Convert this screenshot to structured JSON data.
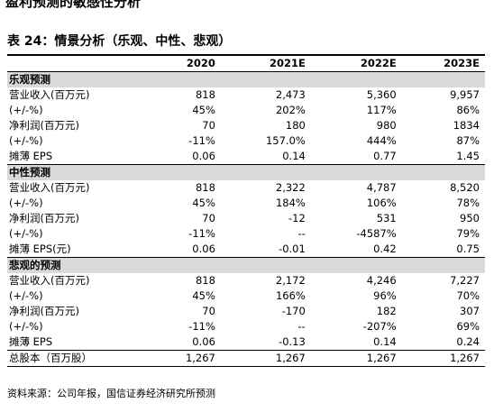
{
  "header": {
    "title": "盈利预测的敏感性分析"
  },
  "table": {
    "caption": "表 24：情景分析（乐观、中性、悲观）",
    "columns": [
      "2020",
      "2021E",
      "2022E",
      "2023E"
    ],
    "rows": [
      [
        "乐观预测"
      ],
      [
        "营业收入(百万元)",
        "818",
        "2,473",
        "5,360",
        "9,957"
      ],
      [
        "(+/-%)",
        "45%",
        "202%",
        "117%",
        "86%"
      ],
      [
        "净利润(百万元)",
        "70",
        "180",
        "980",
        "1834"
      ],
      [
        "(+/-%)",
        "-11%",
        "157.0%",
        "444%",
        "87%"
      ],
      [
        "摊薄 EPS",
        "0.06",
        "0.14",
        "0.77",
        "1.45"
      ],
      [
        "中性预测"
      ],
      [
        "营业收入(百万元)",
        "818",
        "2,322",
        "4,787",
        "8,520"
      ],
      [
        "(+/-%)",
        "45%",
        "184%",
        "106%",
        "78%"
      ],
      [
        "净利润(百万元)",
        "70",
        "-12",
        "531",
        "950"
      ],
      [
        "(+/-%)",
        "-11%",
        "--",
        "-4587%",
        "79%"
      ],
      [
        "摊薄 EPS(元)",
        "0.06",
        "-0.01",
        "0.42",
        "0.75"
      ],
      [
        "悲观的预测"
      ],
      [
        "营业收入(百万元)",
        "818",
        "2,172",
        "4,246",
        "7,227"
      ],
      [
        "(+/-%)",
        "45%",
        "166%",
        "96%",
        "70%"
      ],
      [
        "净利润(百万元)",
        "70",
        "-170",
        "182",
        "307"
      ],
      [
        "(+/-%)",
        "-11%",
        "--",
        "-207%",
        "69%"
      ],
      [
        "摊薄 EPS",
        "0.06",
        "-0.13",
        "0.14",
        "0.24"
      ],
      [
        "总股本（百万股）",
        "1,267",
        "1,267",
        "1,267",
        "1,267"
      ]
    ]
  },
  "footer": {
    "source": "资料来源：公司年报，国信证券经济研究所预测"
  }
}
